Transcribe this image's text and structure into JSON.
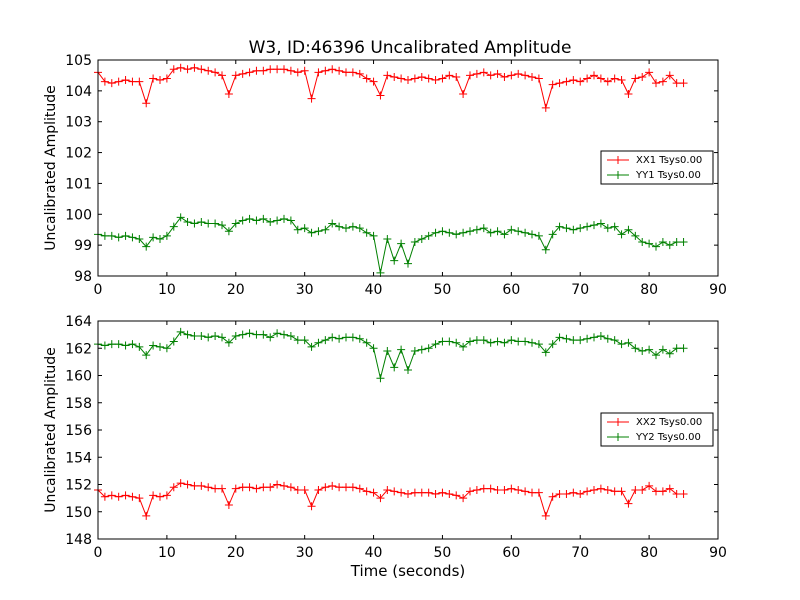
{
  "chart_data": [
    {
      "type": "line",
      "title": "W3, ID:46396 Uncalibrated Amplitude",
      "xlabel": "",
      "ylabel": "Uncalibrated Amplitude",
      "xlim": [
        0,
        90
      ],
      "ylim": [
        98,
        105
      ],
      "xticks": [
        0,
        10,
        20,
        30,
        40,
        50,
        60,
        70,
        80,
        90
      ],
      "yticks": [
        98,
        99,
        100,
        101,
        102,
        103,
        104,
        105
      ],
      "legend_position": "center-right",
      "series": [
        {
          "name": "XX1 Tsys0.00",
          "color": "#ff0000",
          "x": [
            0,
            1,
            2,
            3,
            4,
            5,
            6,
            7,
            8,
            9,
            10,
            11,
            12,
            13,
            14,
            15,
            16,
            17,
            18,
            19,
            20,
            21,
            22,
            23,
            24,
            25,
            26,
            27,
            28,
            29,
            30,
            31,
            32,
            33,
            34,
            35,
            36,
            37,
            38,
            39,
            40,
            41,
            42,
            43,
            44,
            45,
            46,
            47,
            48,
            49,
            50,
            51,
            52,
            53,
            54,
            55,
            56,
            57,
            58,
            59,
            60,
            61,
            62,
            63,
            64,
            65,
            66,
            67,
            68,
            69,
            70,
            71,
            72,
            73,
            74,
            75,
            76,
            77,
            78,
            79,
            80,
            81,
            82,
            83,
            84,
            85
          ],
          "values": [
            104.6,
            104.3,
            104.25,
            104.3,
            104.35,
            104.3,
            104.3,
            103.6,
            104.4,
            104.35,
            104.4,
            104.7,
            104.75,
            104.7,
            104.75,
            104.7,
            104.65,
            104.6,
            104.5,
            103.9,
            104.5,
            104.55,
            104.6,
            104.65,
            104.65,
            104.7,
            104.7,
            104.7,
            104.65,
            104.6,
            104.65,
            103.75,
            104.6,
            104.65,
            104.7,
            104.65,
            104.6,
            104.6,
            104.55,
            104.4,
            104.3,
            103.85,
            104.5,
            104.45,
            104.4,
            104.35,
            104.4,
            104.45,
            104.4,
            104.35,
            104.4,
            104.5,
            104.45,
            103.9,
            104.5,
            104.55,
            104.6,
            104.5,
            104.55,
            104.45,
            104.5,
            104.55,
            104.5,
            104.45,
            104.4,
            103.45,
            104.2,
            104.25,
            104.3,
            104.35,
            104.3,
            104.4,
            104.5,
            104.4,
            104.3,
            104.4,
            104.35,
            103.9,
            104.4,
            104.45,
            104.6,
            104.25,
            104.3,
            104.5,
            104.25,
            104.25
          ]
        },
        {
          "name": "YY1 Tsys0.00",
          "color": "#008000",
          "x": [
            0,
            1,
            2,
            3,
            4,
            5,
            6,
            7,
            8,
            9,
            10,
            11,
            12,
            13,
            14,
            15,
            16,
            17,
            18,
            19,
            20,
            21,
            22,
            23,
            24,
            25,
            26,
            27,
            28,
            29,
            30,
            31,
            32,
            33,
            34,
            35,
            36,
            37,
            38,
            39,
            40,
            41,
            42,
            43,
            44,
            45,
            46,
            47,
            48,
            49,
            50,
            51,
            52,
            53,
            54,
            55,
            56,
            57,
            58,
            59,
            60,
            61,
            62,
            63,
            64,
            65,
            66,
            67,
            68,
            69,
            70,
            71,
            72,
            73,
            74,
            75,
            76,
            77,
            78,
            79,
            80,
            81,
            82,
            83,
            84,
            85
          ],
          "values": [
            99.35,
            99.3,
            99.3,
            99.25,
            99.3,
            99.25,
            99.2,
            98.95,
            99.25,
            99.2,
            99.3,
            99.6,
            99.9,
            99.75,
            99.7,
            99.75,
            99.7,
            99.7,
            99.65,
            99.45,
            99.7,
            99.8,
            99.85,
            99.8,
            99.85,
            99.75,
            99.8,
            99.85,
            99.8,
            99.5,
            99.55,
            99.4,
            99.45,
            99.5,
            99.7,
            99.6,
            99.55,
            99.6,
            99.55,
            99.4,
            99.3,
            98.1,
            99.2,
            98.5,
            99.05,
            98.4,
            99.1,
            99.2,
            99.3,
            99.4,
            99.45,
            99.4,
            99.35,
            99.4,
            99.45,
            99.5,
            99.55,
            99.4,
            99.45,
            99.35,
            99.5,
            99.45,
            99.4,
            99.35,
            99.3,
            98.85,
            99.35,
            99.6,
            99.55,
            99.5,
            99.55,
            99.6,
            99.65,
            99.7,
            99.55,
            99.6,
            99.35,
            99.5,
            99.3,
            99.1,
            99.05,
            98.95,
            99.1,
            99.0,
            99.1,
            99.1
          ]
        }
      ]
    },
    {
      "type": "line",
      "title": "",
      "xlabel": "Time (seconds)",
      "ylabel": "Uncalibrated Amplitude",
      "xlim": [
        0,
        90
      ],
      "ylim": [
        148,
        164
      ],
      "xticks": [
        0,
        10,
        20,
        30,
        40,
        50,
        60,
        70,
        80,
        90
      ],
      "yticks": [
        148,
        150,
        152,
        154,
        156,
        158,
        160,
        162,
        164
      ],
      "legend_position": "center-right",
      "series": [
        {
          "name": "XX2 Tsys0.00",
          "color": "#ff0000",
          "x": [
            0,
            1,
            2,
            3,
            4,
            5,
            6,
            7,
            8,
            9,
            10,
            11,
            12,
            13,
            14,
            15,
            16,
            17,
            18,
            19,
            20,
            21,
            22,
            23,
            24,
            25,
            26,
            27,
            28,
            29,
            30,
            31,
            32,
            33,
            34,
            35,
            36,
            37,
            38,
            39,
            40,
            41,
            42,
            43,
            44,
            45,
            46,
            47,
            48,
            49,
            50,
            51,
            52,
            53,
            54,
            55,
            56,
            57,
            58,
            59,
            60,
            61,
            62,
            63,
            64,
            65,
            66,
            67,
            68,
            69,
            70,
            71,
            72,
            73,
            74,
            75,
            76,
            77,
            78,
            79,
            80,
            81,
            82,
            83,
            84,
            85
          ],
          "values": [
            151.6,
            151.1,
            151.2,
            151.1,
            151.2,
            151.1,
            151.0,
            149.7,
            151.2,
            151.1,
            151.2,
            151.8,
            152.1,
            152.0,
            151.9,
            151.9,
            151.8,
            151.7,
            151.7,
            150.5,
            151.7,
            151.8,
            151.8,
            151.7,
            151.8,
            151.8,
            152.0,
            151.9,
            151.8,
            151.6,
            151.6,
            150.4,
            151.6,
            151.8,
            151.9,
            151.8,
            151.8,
            151.8,
            151.7,
            151.5,
            151.4,
            151.0,
            151.6,
            151.5,
            151.4,
            151.3,
            151.4,
            151.4,
            151.4,
            151.3,
            151.4,
            151.3,
            151.2,
            151.0,
            151.5,
            151.6,
            151.7,
            151.7,
            151.6,
            151.6,
            151.7,
            151.6,
            151.5,
            151.4,
            151.4,
            149.7,
            151.1,
            151.3,
            151.3,
            151.4,
            151.3,
            151.5,
            151.6,
            151.7,
            151.6,
            151.5,
            151.5,
            150.6,
            151.6,
            151.6,
            151.9,
            151.5,
            151.5,
            151.7,
            151.3,
            151.3
          ]
        },
        {
          "name": "YY2 Tsys0.00",
          "color": "#008000",
          "x": [
            0,
            1,
            2,
            3,
            4,
            5,
            6,
            7,
            8,
            9,
            10,
            11,
            12,
            13,
            14,
            15,
            16,
            17,
            18,
            19,
            20,
            21,
            22,
            23,
            24,
            25,
            26,
            27,
            28,
            29,
            30,
            31,
            32,
            33,
            34,
            35,
            36,
            37,
            38,
            39,
            40,
            41,
            42,
            43,
            44,
            45,
            46,
            47,
            48,
            49,
            50,
            51,
            52,
            53,
            54,
            55,
            56,
            57,
            58,
            59,
            60,
            61,
            62,
            63,
            64,
            65,
            66,
            67,
            68,
            69,
            70,
            71,
            72,
            73,
            74,
            75,
            76,
            77,
            78,
            79,
            80,
            81,
            82,
            83,
            84,
            85
          ],
          "values": [
            162.3,
            162.2,
            162.3,
            162.3,
            162.2,
            162.3,
            162.1,
            161.5,
            162.2,
            162.1,
            162.0,
            162.5,
            163.2,
            163.0,
            162.9,
            162.9,
            162.8,
            162.9,
            162.8,
            162.4,
            162.9,
            163.0,
            163.1,
            163.0,
            163.0,
            162.8,
            163.1,
            163.0,
            162.9,
            162.6,
            162.6,
            162.1,
            162.4,
            162.6,
            162.8,
            162.7,
            162.8,
            162.8,
            162.7,
            162.4,
            162.0,
            159.8,
            161.8,
            160.6,
            161.9,
            160.4,
            161.8,
            161.9,
            162.0,
            162.3,
            162.5,
            162.5,
            162.4,
            162.1,
            162.5,
            162.6,
            162.6,
            162.4,
            162.5,
            162.4,
            162.6,
            162.5,
            162.5,
            162.4,
            162.3,
            161.7,
            162.3,
            162.8,
            162.7,
            162.6,
            162.6,
            162.7,
            162.8,
            162.9,
            162.7,
            162.6,
            162.3,
            162.4,
            162.0,
            161.8,
            161.9,
            161.5,
            161.9,
            161.6,
            162.0,
            162.0
          ]
        }
      ]
    }
  ]
}
